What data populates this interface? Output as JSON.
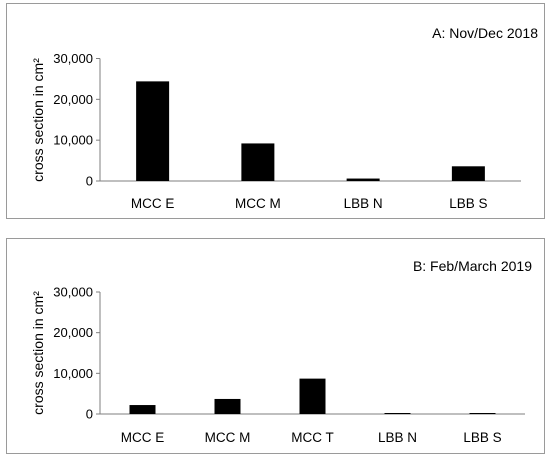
{
  "chart_data": [
    {
      "type": "bar",
      "panel_label": "A: Nov/Dec 2018",
      "ylabel": "cross section in cm²",
      "xlabel": "",
      "categories": [
        "MCC E",
        "MCC M",
        "LBB N",
        "LBB S"
      ],
      "values": [
        24400,
        9200,
        600,
        3600
      ],
      "ylim": [
        0,
        30000
      ],
      "yticks": [
        0,
        10000,
        20000,
        30000
      ],
      "ytick_labels": [
        "0",
        "10,000",
        "20,000",
        "30,000"
      ],
      "bar_color": "#000000",
      "grid": false,
      "legend": "none"
    },
    {
      "type": "bar",
      "panel_label": "B: Feb/March 2019",
      "ylabel": "cross section in cm²",
      "xlabel": "",
      "categories": [
        "MCC E",
        "MCC M",
        "MCC T",
        "LBB N",
        "LBB S"
      ],
      "values": [
        2200,
        3700,
        8700,
        60,
        150
      ],
      "ylim": [
        0,
        30000
      ],
      "yticks": [
        0,
        10000,
        20000,
        30000
      ],
      "ytick_labels": [
        "0",
        "10,000",
        "20,000",
        "30,000"
      ],
      "bar_color": "#000000",
      "grid": false,
      "legend": "none"
    }
  ]
}
